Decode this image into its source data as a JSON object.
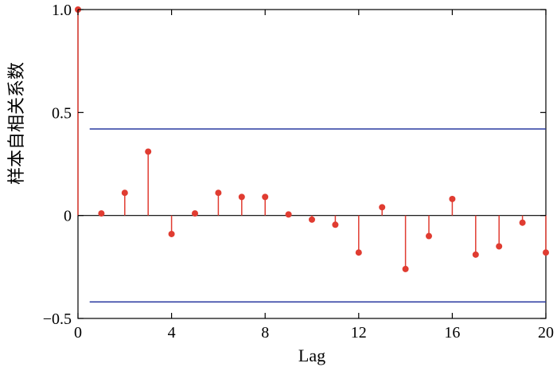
{
  "chart_data": {
    "type": "stem",
    "xlabel": "Lag",
    "ylabel": "样本自相关系数",
    "xlim": [
      0,
      20
    ],
    "ylim": [
      -0.5,
      1.0
    ],
    "xticks": [
      0,
      4,
      8,
      12,
      16,
      20
    ],
    "xtick_labels": [
      "0",
      "4",
      "8",
      "12",
      "16",
      "20"
    ],
    "yticks": [
      -0.5,
      0,
      0.5,
      1.0
    ],
    "ytick_labels": [
      "−0.5",
      "0",
      "0.5",
      "1.0"
    ],
    "grid": false,
    "lags": [
      0,
      1,
      2,
      3,
      4,
      5,
      6,
      7,
      8,
      9,
      10,
      11,
      12,
      13,
      14,
      15,
      16,
      17,
      18,
      19,
      20
    ],
    "values": [
      1.0,
      0.01,
      0.11,
      0.31,
      -0.09,
      0.01,
      0.11,
      0.09,
      0.09,
      0.005,
      -0.02,
      -0.045,
      -0.18,
      0.04,
      -0.26,
      -0.1,
      0.08,
      -0.19,
      -0.15,
      -0.035,
      -0.18
    ],
    "confidence_bounds": [
      0.42,
      -0.42
    ],
    "colors": {
      "stem": "#e03c31",
      "bounds": "#2a3aa0",
      "axis": "#000000"
    }
  }
}
